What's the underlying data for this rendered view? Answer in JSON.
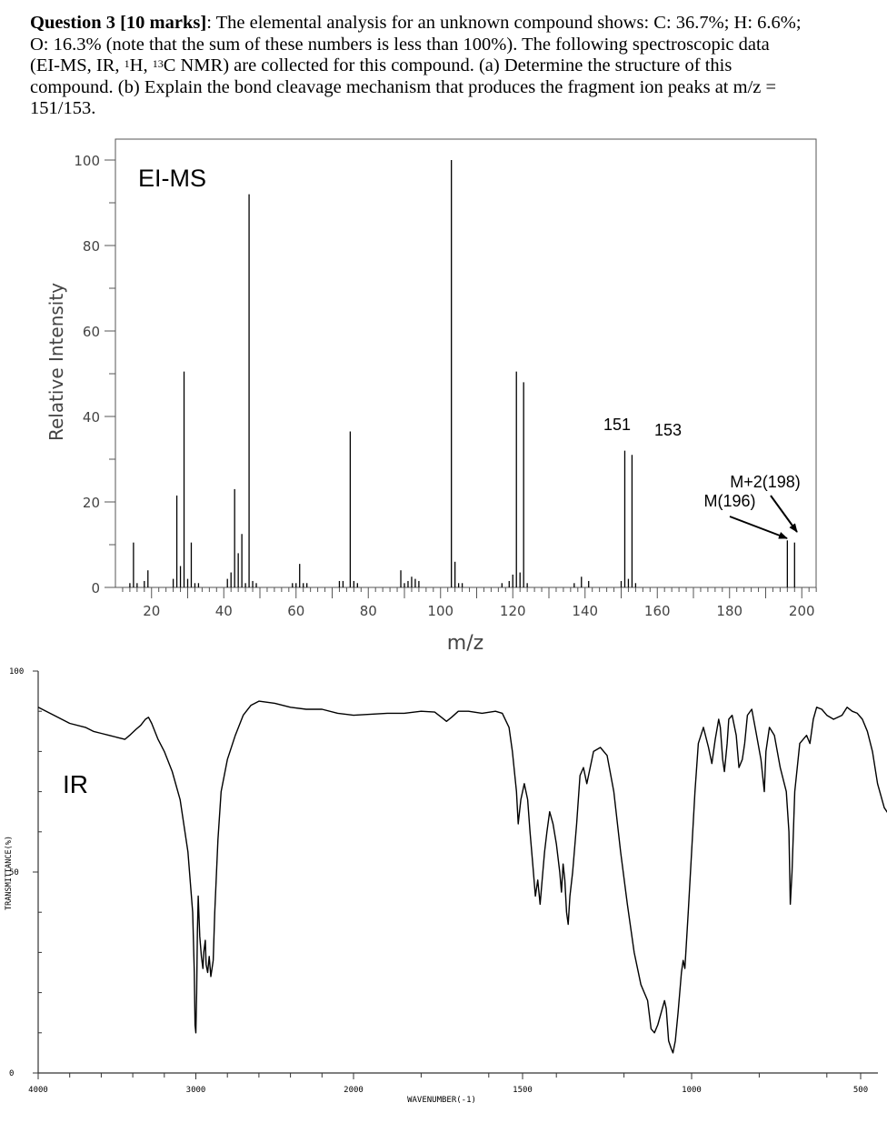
{
  "question": {
    "title": "Question 3 [10 marks]",
    "line1": ": The elemental analysis for an unknown compound shows: C: 36.7%; H: 6.6%;",
    "line2": "O: 16.3% (note that the sum of these numbers is less than 100%). The following spectroscopic data",
    "line3a": "(EI-MS, IR, ",
    "sup1": "1",
    "line3b": "H, ",
    "sup2": "13",
    "line3c": "C NMR) are collected for this compound. (a) Determine the structure of this",
    "line4": "compound. (b) Explain the bond cleavage mechanism that produces the fragment ion peaks at m/z =",
    "line5": "151/153."
  },
  "chart_data": [
    {
      "type": "bar",
      "title": "EI-MS",
      "xlabel": "m/z",
      "ylabel": "Relative Intensity",
      "xlim": [
        10,
        204
      ],
      "ylim": [
        0,
        100
      ],
      "xticks": [
        20,
        40,
        60,
        80,
        100,
        120,
        140,
        160,
        180,
        200
      ],
      "yticks": [
        0,
        20,
        40,
        60,
        80,
        100
      ],
      "peaks": [
        {
          "x": 14,
          "y": 1.0
        },
        {
          "x": 15,
          "y": 10.5
        },
        {
          "x": 16,
          "y": 1.0
        },
        {
          "x": 18,
          "y": 1.5
        },
        {
          "x": 19,
          "y": 4.0
        },
        {
          "x": 26,
          "y": 2.0
        },
        {
          "x": 27,
          "y": 21.5
        },
        {
          "x": 28,
          "y": 5.0
        },
        {
          "x": 29,
          "y": 50.5
        },
        {
          "x": 30,
          "y": 2.0
        },
        {
          "x": 31,
          "y": 10.5
        },
        {
          "x": 32,
          "y": 1.0
        },
        {
          "x": 33,
          "y": 1.0
        },
        {
          "x": 41,
          "y": 2.0
        },
        {
          "x": 42,
          "y": 3.5
        },
        {
          "x": 43,
          "y": 23.0
        },
        {
          "x": 44,
          "y": 8.0
        },
        {
          "x": 45,
          "y": 12.5
        },
        {
          "x": 46,
          "y": 1.0
        },
        {
          "x": 47,
          "y": 92.0
        },
        {
          "x": 48,
          "y": 1.5
        },
        {
          "x": 49,
          "y": 1.0
        },
        {
          "x": 59,
          "y": 1.0
        },
        {
          "x": 60,
          "y": 1.0
        },
        {
          "x": 61,
          "y": 5.5
        },
        {
          "x": 62,
          "y": 1.0
        },
        {
          "x": 63,
          "y": 1.0
        },
        {
          "x": 72,
          "y": 1.5
        },
        {
          "x": 73,
          "y": 1.5
        },
        {
          "x": 75,
          "y": 36.5
        },
        {
          "x": 76,
          "y": 1.5
        },
        {
          "x": 77,
          "y": 1.0
        },
        {
          "x": 89,
          "y": 4.0
        },
        {
          "x": 90,
          "y": 1.0
        },
        {
          "x": 91,
          "y": 1.5
        },
        {
          "x": 92,
          "y": 2.5
        },
        {
          "x": 93,
          "y": 2.0
        },
        {
          "x": 94,
          "y": 1.5
        },
        {
          "x": 103,
          "y": 100
        },
        {
          "x": 104,
          "y": 6.0
        },
        {
          "x": 105,
          "y": 1.0
        },
        {
          "x": 106,
          "y": 1.0
        },
        {
          "x": 117,
          "y": 1.0
        },
        {
          "x": 119,
          "y": 1.5
        },
        {
          "x": 120,
          "y": 3.0
        },
        {
          "x": 121,
          "y": 50.5
        },
        {
          "x": 122,
          "y": 3.5
        },
        {
          "x": 123,
          "y": 48.0
        },
        {
          "x": 124,
          "y": 1.0
        },
        {
          "x": 137,
          "y": 1.0
        },
        {
          "x": 139,
          "y": 2.5
        },
        {
          "x": 141,
          "y": 1.5
        },
        {
          "x": 150,
          "y": 1.5
        },
        {
          "x": 151,
          "y": 32.0
        },
        {
          "x": 152,
          "y": 2.0
        },
        {
          "x": 153,
          "y": 31.0
        },
        {
          "x": 154,
          "y": 1.0
        },
        {
          "x": 196,
          "y": 11.0
        },
        {
          "x": 198,
          "y": 10.5
        }
      ],
      "annotations": [
        {
          "text": "151",
          "x": 151
        },
        {
          "text": "153",
          "x": 153
        },
        {
          "text": "M+2(198)",
          "x": 198
        },
        {
          "text": "M(196)",
          "x": 196
        }
      ]
    },
    {
      "type": "line",
      "title": "IR",
      "xlabel": "WAVENUMBER(-1)",
      "ylabel": "TRANSMITTANCE(%)",
      "xlim": [
        4000,
        400
      ],
      "ylim": [
        0,
        100
      ],
      "xticks": [
        4000,
        3000,
        2000,
        1500,
        1000,
        500
      ],
      "yticks": [
        0,
        50,
        100
      ],
      "ytick_labels": [
        "0",
        "50",
        "100"
      ],
      "points": [
        [
          4000,
          91
        ],
        [
          3900,
          89
        ],
        [
          3800,
          87
        ],
        [
          3700,
          86
        ],
        [
          3650,
          85
        ],
        [
          3600,
          84.5
        ],
        [
          3550,
          84
        ],
        [
          3500,
          83.5
        ],
        [
          3450,
          83
        ],
        [
          3420,
          84
        ],
        [
          3380,
          85.5
        ],
        [
          3350,
          86.5
        ],
        [
          3320,
          88
        ],
        [
          3300,
          88.5
        ],
        [
          3280,
          87
        ],
        [
          3240,
          83
        ],
        [
          3200,
          80
        ],
        [
          3150,
          75
        ],
        [
          3100,
          68
        ],
        [
          3050,
          55
        ],
        [
          3020,
          40
        ],
        [
          3010,
          25
        ],
        [
          3005,
          12
        ],
        [
          3000,
          10
        ],
        [
          2995,
          20
        ],
        [
          2990,
          35
        ],
        [
          2985,
          44
        ],
        [
          2975,
          34
        ],
        [
          2965,
          29
        ],
        [
          2955,
          26
        ],
        [
          2950,
          30
        ],
        [
          2940,
          33
        ],
        [
          2935,
          27
        ],
        [
          2925,
          25
        ],
        [
          2915,
          29
        ],
        [
          2905,
          24
        ],
        [
          2890,
          28
        ],
        [
          2880,
          40
        ],
        [
          2860,
          58
        ],
        [
          2840,
          70
        ],
        [
          2800,
          78
        ],
        [
          2750,
          84
        ],
        [
          2700,
          89
        ],
        [
          2650,
          91.5
        ],
        [
          2600,
          92.5
        ],
        [
          2500,
          92
        ],
        [
          2400,
          91
        ],
        [
          2300,
          90.5
        ],
        [
          2200,
          90.5
        ],
        [
          2100,
          89.5
        ],
        [
          2000,
          89
        ],
        [
          1900,
          89.5
        ],
        [
          1850,
          89.5
        ],
        [
          1800,
          90
        ],
        [
          1760,
          89.8
        ],
        [
          1740,
          88.5
        ],
        [
          1725,
          87.5
        ],
        [
          1710,
          88.5
        ],
        [
          1690,
          90
        ],
        [
          1660,
          90
        ],
        [
          1620,
          89.5
        ],
        [
          1580,
          90
        ],
        [
          1560,
          89.5
        ],
        [
          1540,
          86
        ],
        [
          1530,
          80
        ],
        [
          1518,
          70
        ],
        [
          1513,
          62
        ],
        [
          1505,
          68
        ],
        [
          1495,
          72
        ],
        [
          1485,
          68
        ],
        [
          1478,
          60
        ],
        [
          1470,
          52
        ],
        [
          1462,
          44
        ],
        [
          1455,
          48
        ],
        [
          1448,
          42
        ],
        [
          1440,
          50
        ],
        [
          1435,
          55
        ],
        [
          1428,
          60
        ],
        [
          1420,
          65
        ],
        [
          1410,
          62
        ],
        [
          1400,
          57
        ],
        [
          1390,
          50
        ],
        [
          1385,
          45
        ],
        [
          1380,
          52
        ],
        [
          1375,
          48
        ],
        [
          1370,
          40
        ],
        [
          1365,
          37
        ],
        [
          1360,
          44
        ],
        [
          1352,
          50
        ],
        [
          1340,
          62
        ],
        [
          1330,
          74
        ],
        [
          1320,
          76
        ],
        [
          1310,
          72
        ],
        [
          1300,
          76
        ],
        [
          1290,
          80
        ],
        [
          1270,
          81
        ],
        [
          1250,
          79
        ],
        [
          1230,
          70
        ],
        [
          1210,
          55
        ],
        [
          1190,
          42
        ],
        [
          1170,
          30
        ],
        [
          1150,
          22
        ],
        [
          1130,
          18
        ],
        [
          1120,
          11
        ],
        [
          1110,
          10
        ],
        [
          1100,
          12
        ],
        [
          1090,
          15
        ],
        [
          1080,
          18
        ],
        [
          1075,
          16
        ],
        [
          1068,
          8
        ],
        [
          1060,
          6
        ],
        [
          1055,
          5
        ],
        [
          1048,
          8
        ],
        [
          1040,
          15
        ],
        [
          1030,
          25
        ],
        [
          1025,
          28
        ],
        [
          1020,
          26
        ],
        [
          1010,
          40
        ],
        [
          1000,
          55
        ],
        [
          990,
          70
        ],
        [
          980,
          82
        ],
        [
          965,
          86
        ],
        [
          950,
          81
        ],
        [
          940,
          77
        ],
        [
          930,
          83
        ],
        [
          920,
          88
        ],
        [
          915,
          86
        ],
        [
          908,
          78
        ],
        [
          903,
          75
        ],
        [
          895,
          82
        ],
        [
          890,
          88
        ],
        [
          880,
          89
        ],
        [
          868,
          84
        ],
        [
          860,
          76
        ],
        [
          850,
          78
        ],
        [
          843,
          82
        ],
        [
          835,
          89
        ],
        [
          822,
          90.5
        ],
        [
          810,
          85
        ],
        [
          795,
          78
        ],
        [
          785,
          70
        ],
        [
          780,
          80
        ],
        [
          770,
          86
        ],
        [
          755,
          84
        ],
        [
          738,
          76
        ],
        [
          720,
          70
        ],
        [
          712,
          60
        ],
        [
          708,
          42
        ],
        [
          703,
          50
        ],
        [
          695,
          70
        ],
        [
          680,
          82
        ],
        [
          660,
          84
        ],
        [
          650,
          82
        ],
        [
          640,
          88
        ],
        [
          630,
          91
        ],
        [
          615,
          90.5
        ],
        [
          600,
          89
        ],
        [
          580,
          88
        ],
        [
          555,
          89
        ],
        [
          540,
          91
        ],
        [
          525,
          90
        ],
        [
          510,
          89.5
        ],
        [
          495,
          88
        ],
        [
          480,
          85
        ],
        [
          465,
          80
        ],
        [
          450,
          72
        ],
        [
          430,
          66
        ],
        [
          410,
          63.5
        ],
        [
          400,
          63
        ]
      ]
    }
  ]
}
